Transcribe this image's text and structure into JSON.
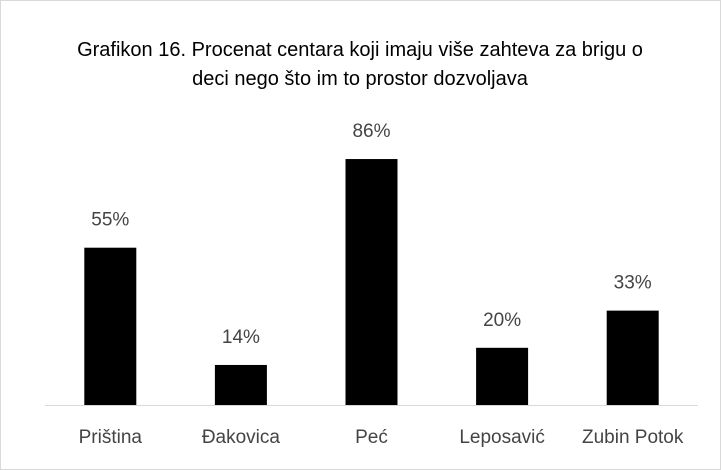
{
  "chart_data": {
    "type": "bar",
    "title": "Grafikon 16. Procenat centara koji imaju više zahteva za brigu o deci nego što im to prostor dozvoljava",
    "categories": [
      "Priština",
      "Đakovica",
      "Peć",
      "Leposavić",
      "Zubin Potok"
    ],
    "values": [
      55,
      14,
      86,
      20,
      33
    ],
    "value_labels": [
      "55%",
      "14%",
      "86%",
      "20%",
      "33%"
    ],
    "color": "#000000"
  }
}
